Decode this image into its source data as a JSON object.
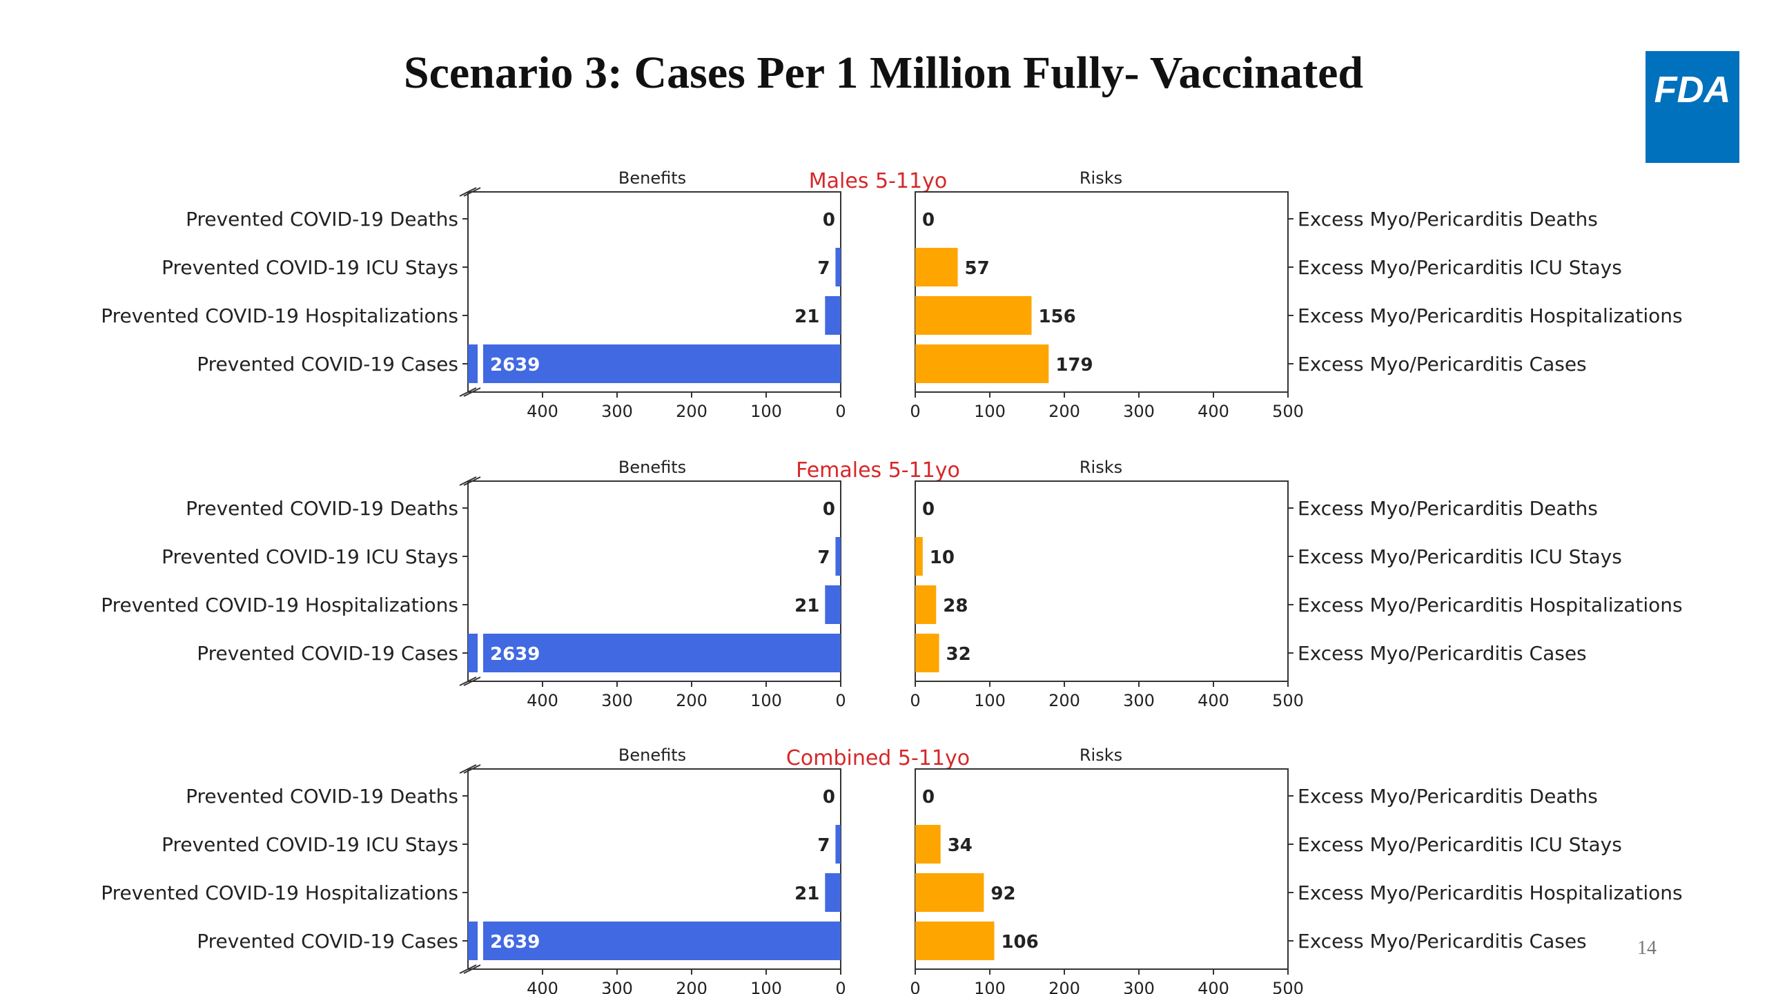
{
  "slide": {
    "title": "Scenario 3: Cases Per 1 Million Fully- Vaccinated",
    "logo_text": "FDA",
    "page_number": "14"
  },
  "colors": {
    "benefit": "#4169e1",
    "risk": "#ffa500",
    "panel_title": "#d62728",
    "logo_bg": "#0071bc"
  },
  "chart_data": [
    {
      "type": "bar",
      "title": "Males 5-11yo",
      "left_label": "Benefits",
      "right_label": "Risks",
      "benefit_categories": [
        "Prevented COVID-19 Deaths",
        "Prevented COVID-19 ICU Stays",
        "Prevented COVID-19 Hospitalizations",
        "Prevented COVID-19 Cases"
      ],
      "risk_categories": [
        "Excess Myo/Pericarditis Deaths",
        "Excess Myo/Pericarditis ICU Stays",
        "Excess Myo/Pericarditis Hospitalizations",
        "Excess Myo/Pericarditis Cases"
      ],
      "benefits": [
        0,
        7,
        21,
        2639
      ],
      "risks": [
        0,
        57,
        156,
        179
      ],
      "benefit_axis": {
        "range": [
          500,
          0
        ],
        "ticks": [
          "400",
          "300",
          "200",
          "100",
          "0"
        ],
        "broken": true
      },
      "risk_axis": {
        "range": [
          0,
          500
        ],
        "ticks": [
          "0",
          "100",
          "200",
          "300",
          "400",
          "500"
        ]
      }
    },
    {
      "type": "bar",
      "title": "Females 5-11yo",
      "left_label": "Benefits",
      "right_label": "Risks",
      "benefit_categories": [
        "Prevented COVID-19 Deaths",
        "Prevented COVID-19 ICU Stays",
        "Prevented COVID-19 Hospitalizations",
        "Prevented COVID-19 Cases"
      ],
      "risk_categories": [
        "Excess Myo/Pericarditis Deaths",
        "Excess Myo/Pericarditis ICU Stays",
        "Excess Myo/Pericarditis Hospitalizations",
        "Excess Myo/Pericarditis Cases"
      ],
      "benefits": [
        0,
        7,
        21,
        2639
      ],
      "risks": [
        0,
        10,
        28,
        32
      ],
      "benefit_axis": {
        "range": [
          500,
          0
        ],
        "ticks": [
          "400",
          "300",
          "200",
          "100",
          "0"
        ],
        "broken": true
      },
      "risk_axis": {
        "range": [
          0,
          500
        ],
        "ticks": [
          "0",
          "100",
          "200",
          "300",
          "400",
          "500"
        ]
      }
    },
    {
      "type": "bar",
      "title": "Combined 5-11yo",
      "left_label": "Benefits",
      "right_label": "Risks",
      "benefit_categories": [
        "Prevented COVID-19 Deaths",
        "Prevented COVID-19 ICU Stays",
        "Prevented COVID-19 Hospitalizations",
        "Prevented COVID-19 Cases"
      ],
      "risk_categories": [
        "Excess Myo/Pericarditis Deaths",
        "Excess Myo/Pericarditis ICU Stays",
        "Excess Myo/Pericarditis Hospitalizations",
        "Excess Myo/Pericarditis Cases"
      ],
      "benefits": [
        0,
        7,
        21,
        2639
      ],
      "risks": [
        0,
        34,
        92,
        106
      ],
      "benefit_axis": {
        "range": [
          500,
          0
        ],
        "ticks": [
          "400",
          "300",
          "200",
          "100",
          "0"
        ],
        "broken": true
      },
      "risk_axis": {
        "range": [
          0,
          500
        ],
        "ticks": [
          "0",
          "100",
          "200",
          "300",
          "400",
          "500"
        ]
      }
    }
  ]
}
